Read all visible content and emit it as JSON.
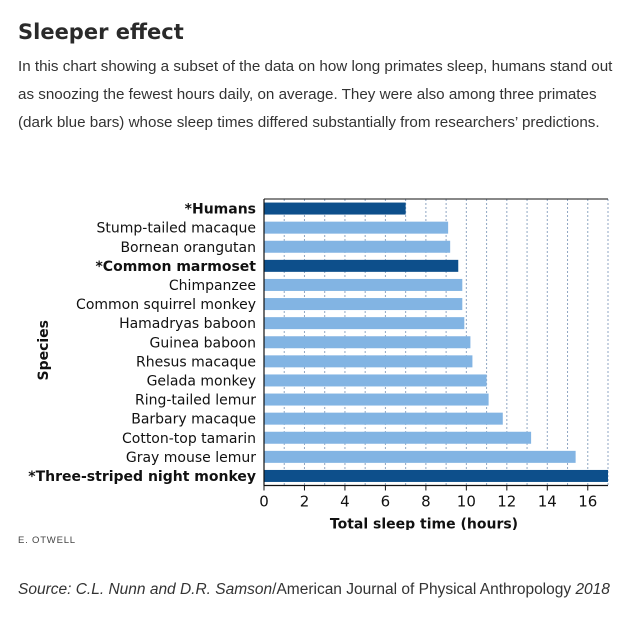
{
  "header": {
    "title": "Sleeper effect",
    "subtitle": "In this chart showing a subset of the data on how long primates sleep, humans stand out as snoozing the fewest hours daily, on average. They were also among three primates (dark blue bars) whose sleep times differed substantially from researchers’ predictions."
  },
  "chart_data": {
    "type": "bar",
    "orientation": "horizontal",
    "title": "",
    "xlabel": "Total sleep time (hours)",
    "ylabel": "Species",
    "xlim": [
      0,
      17
    ],
    "xticks": [
      0,
      2,
      4,
      6,
      8,
      10,
      12,
      14,
      16
    ],
    "grid": true,
    "categories": [
      "*Humans",
      "Stump-tailed macaque",
      "Bornean orangutan",
      "*Common marmoset",
      "Chimpanzee",
      "Common squirrel monkey",
      "Hamadryas baboon",
      "Guinea baboon",
      "Rhesus macaque",
      "Gelada monkey",
      "Ring-tailed lemur",
      "Barbary macaque",
      "Cotton-top tamarin",
      "Gray mouse lemur",
      "*Three-striped night monkey"
    ],
    "values": [
      7.0,
      9.1,
      9.2,
      9.6,
      9.8,
      9.8,
      9.9,
      10.2,
      10.3,
      11.0,
      11.1,
      11.8,
      13.2,
      15.4,
      17.0
    ],
    "highlighted": [
      true,
      false,
      false,
      true,
      false,
      false,
      false,
      false,
      false,
      false,
      false,
      false,
      false,
      false,
      true
    ],
    "colors": {
      "highlight": "#0d4f8b",
      "normal": "#82b4e3",
      "grid": "#8fa6c3",
      "axis": "#111111"
    }
  },
  "footer": {
    "credit": "E. OTWELL",
    "source_italic_1": "Source: C.L. Nunn and D.R. Samson",
    "source_normal": "/American Journal of Physical Anthropology",
    "source_italic_2": "2018"
  }
}
